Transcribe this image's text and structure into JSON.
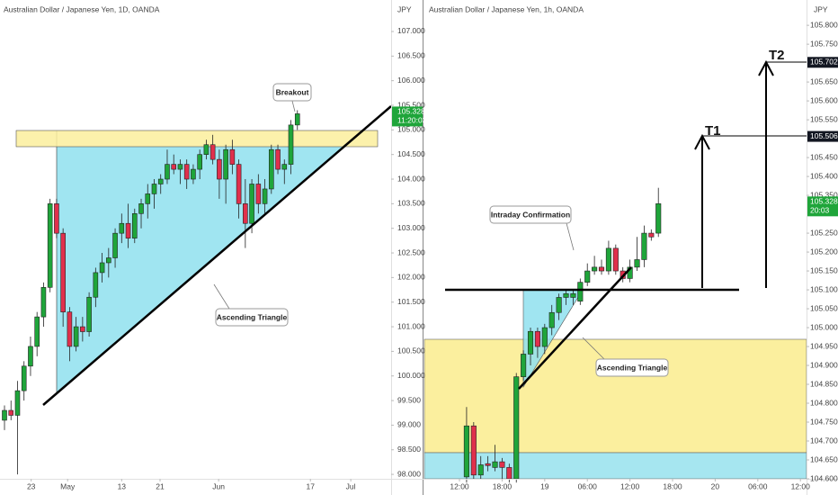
{
  "chart_data": [
    {
      "type": "candlestick",
      "title": "Australian Dollar / Japanese Yen, 1D, OANDA",
      "currency": "JPY",
      "up_color": "#1fa53a",
      "down_color": "#e0304c",
      "x": [
        0,
        1,
        2,
        3,
        4,
        5,
        6,
        7,
        8,
        9,
        10,
        11,
        12,
        13,
        14,
        15,
        16,
        17,
        18,
        19,
        20,
        21,
        22,
        23,
        24,
        25,
        26,
        27,
        28,
        29,
        30,
        31,
        32,
        33,
        34,
        35,
        36,
        37,
        38,
        39,
        40,
        41,
        42,
        43,
        44,
        45
      ],
      "open": [
        99.1,
        99.3,
        99.2,
        99.7,
        100.2,
        100.6,
        101.2,
        101.8,
        103.5,
        102.9,
        101.3,
        100.6,
        101.0,
        100.9,
        101.6,
        102.1,
        102.3,
        102.4,
        102.9,
        103.1,
        102.8,
        103.3,
        103.5,
        103.7,
        103.9,
        104.0,
        104.3,
        104.2,
        104.3,
        104.0,
        104.2,
        104.5,
        104.7,
        104.4,
        104.0,
        104.6,
        104.3,
        103.5,
        103.1,
        103.9,
        103.5,
        103.8,
        104.6,
        104.2,
        104.3,
        105.1
      ],
      "high": [
        99.4,
        99.5,
        99.9,
        100.3,
        100.8,
        101.3,
        101.9,
        103.6,
        103.6,
        103.0,
        101.4,
        101.2,
        101.2,
        101.7,
        102.2,
        102.5,
        102.6,
        103.0,
        103.3,
        103.5,
        103.4,
        103.6,
        103.9,
        104.0,
        104.1,
        104.6,
        104.5,
        104.4,
        104.4,
        104.3,
        104.6,
        104.8,
        104.9,
        104.6,
        104.7,
        104.8,
        104.4,
        104.0,
        104.0,
        104.1,
        104.0,
        104.7,
        104.7,
        104.4,
        105.2,
        105.4
      ],
      "low": [
        98.9,
        99.1,
        98.0,
        99.5,
        100.0,
        100.4,
        101.0,
        101.7,
        102.8,
        101.0,
        100.3,
        100.5,
        100.7,
        100.8,
        101.4,
        101.9,
        102.0,
        102.2,
        102.7,
        102.6,
        102.7,
        103.0,
        103.2,
        103.4,
        103.7,
        103.9,
        104.1,
        103.9,
        103.8,
        103.9,
        104.0,
        104.4,
        104.3,
        103.6,
        103.5,
        104.1,
        103.2,
        102.6,
        102.9,
        103.3,
        103.3,
        103.7,
        104.1,
        103.9,
        104.1,
        105.0
      ],
      "close": [
        99.3,
        99.2,
        99.7,
        100.2,
        100.6,
        101.2,
        101.8,
        103.5,
        102.9,
        101.3,
        100.6,
        101.0,
        100.9,
        101.6,
        102.1,
        102.3,
        102.4,
        102.9,
        103.1,
        102.8,
        103.3,
        103.5,
        103.7,
        103.9,
        104.0,
        104.3,
        104.2,
        104.3,
        104.0,
        104.2,
        104.5,
        104.7,
        104.4,
        104.0,
        104.6,
        104.3,
        103.5,
        103.1,
        103.9,
        103.5,
        103.8,
        104.6,
        104.2,
        104.3,
        105.1,
        105.328
      ],
      "xlim": [
        -0.69,
        59.4
      ],
      "xticks": [
        {
          "value": 4.1,
          "label": "23"
        },
        {
          "value": 9.7,
          "label": "May"
        },
        {
          "value": 18,
          "label": "13"
        },
        {
          "value": 23.9,
          "label": "21"
        },
        {
          "value": 32.9,
          "label": "Jun"
        },
        {
          "value": 47,
          "label": "17"
        },
        {
          "value": 53.2,
          "label": "Jul"
        }
      ],
      "ylim": [
        97.91,
        107.64
      ],
      "yticks": [
        {
          "value": 98,
          "label": "98.000"
        },
        {
          "value": 98.5,
          "label": "98.500"
        },
        {
          "value": 99,
          "label": "99.000"
        },
        {
          "value": 99.5,
          "label": "99.500"
        },
        {
          "value": 100,
          "label": "100.000"
        },
        {
          "value": 100.5,
          "label": "100.500"
        },
        {
          "value": 101,
          "label": "101.000"
        },
        {
          "value": 101.5,
          "label": "101.500"
        },
        {
          "value": 102,
          "label": "102.000"
        },
        {
          "value": 102.5,
          "label": "102.500"
        },
        {
          "value": 103,
          "label": "103.000"
        },
        {
          "value": 103.5,
          "label": "103.500"
        },
        {
          "value": 104,
          "label": "104.000"
        },
        {
          "value": 104.5,
          "label": "104.500"
        },
        {
          "value": 105,
          "label": "105.000"
        },
        {
          "value": 105.5,
          "label": "105.500"
        },
        {
          "value": 106,
          "label": "106.000"
        },
        {
          "value": 106.5,
          "label": "106.500"
        },
        {
          "value": 107,
          "label": "107.000"
        }
      ],
      "last_price": 105.328,
      "countdown": "11:20:03",
      "annotations": [
        "Breakout",
        "Ascending Triangle"
      ]
    },
    {
      "type": "candlestick",
      "title": "Australian Dollar / Japanese Yen, 1h, OANDA",
      "currency": "JPY",
      "up_color": "#1fa53a",
      "down_color": "#e0304c",
      "x": [
        1,
        2,
        3,
        4,
        5,
        6,
        7,
        8,
        9,
        10,
        11,
        12,
        13,
        14,
        15,
        16,
        17,
        18,
        19,
        20,
        21,
        22,
        23,
        24,
        25,
        26,
        27,
        28
      ],
      "open": [
        104.605,
        104.74,
        104.61,
        104.64,
        104.63,
        104.645,
        104.63,
        104.6,
        104.87,
        104.93,
        104.99,
        104.95,
        105.0,
        105.04,
        105.08,
        105.08,
        105.07,
        105.12,
        105.15,
        105.16,
        105.15,
        105.21,
        105.15,
        105.13,
        105.16,
        105.18,
        105.25,
        105.25
      ],
      "high": [
        104.79,
        104.75,
        104.66,
        104.66,
        104.69,
        104.655,
        104.64,
        104.88,
        104.94,
        105.0,
        105.0,
        105.01,
        105.06,
        105.09,
        105.1,
        105.1,
        105.13,
        105.17,
        105.19,
        105.18,
        105.23,
        105.22,
        105.16,
        105.18,
        105.24,
        105.27,
        105.26,
        105.37
      ],
      "low": [
        104.59,
        104.6,
        104.6,
        104.62,
        104.62,
        104.6,
        104.59,
        104.59,
        104.86,
        104.9,
        104.92,
        104.93,
        104.98,
        105.02,
        105.06,
        105.06,
        105.06,
        105.11,
        105.14,
        105.14,
        105.14,
        105.14,
        105.12,
        105.12,
        105.15,
        105.16,
        105.23,
        105.24
      ],
      "close": [
        104.74,
        104.61,
        104.637,
        104.635,
        104.645,
        104.63,
        104.6,
        104.87,
        104.93,
        104.99,
        104.95,
        105.0,
        105.04,
        105.08,
        105.09,
        105.09,
        105.12,
        105.15,
        105.16,
        105.15,
        105.21,
        105.15,
        105.13,
        105.16,
        105.18,
        105.25,
        105.24,
        105.328
      ],
      "xlim": [
        -4.94,
        48.86
      ],
      "xticks": [
        {
          "value": 0,
          "label": "12:00"
        },
        {
          "value": 6,
          "label": "18:00"
        },
        {
          "value": 12,
          "label": "19"
        },
        {
          "value": 18,
          "label": "06:00"
        },
        {
          "value": 24,
          "label": "12:00"
        },
        {
          "value": 30,
          "label": "18:00"
        },
        {
          "value": 36,
          "label": "20"
        },
        {
          "value": 42,
          "label": "06:00"
        },
        {
          "value": 48,
          "label": "12:00"
        }
      ],
      "ylim": [
        104.6,
        105.867
      ],
      "yticks": [
        {
          "value": 104.6,
          "label": "104.600"
        },
        {
          "value": 104.65,
          "label": "104.650"
        },
        {
          "value": 104.7,
          "label": "104.700"
        },
        {
          "value": 104.75,
          "label": "104.750"
        },
        {
          "value": 104.8,
          "label": "104.800"
        },
        {
          "value": 104.85,
          "label": "104.850"
        },
        {
          "value": 104.9,
          "label": "104.900"
        },
        {
          "value": 104.95,
          "label": "104.950"
        },
        {
          "value": 105,
          "label": "105.000"
        },
        {
          "value": 105.05,
          "label": "105.050"
        },
        {
          "value": 105.1,
          "label": "105.100"
        },
        {
          "value": 105.15,
          "label": "105.150"
        },
        {
          "value": 105.2,
          "label": "105.200"
        },
        {
          "value": 105.25,
          "label": "105.250"
        },
        {
          "value": 105.35,
          "label": "105.350"
        },
        {
          "value": 105.4,
          "label": "105.400"
        },
        {
          "value": 105.45,
          "label": "105.450"
        },
        {
          "value": 105.55,
          "label": "105.550"
        },
        {
          "value": 105.6,
          "label": "105.600"
        },
        {
          "value": 105.65,
          "label": "105.650"
        },
        {
          "value": 105.75,
          "label": "105.750"
        },
        {
          "value": 105.8,
          "label": "105.800"
        }
      ],
      "last_price": 105.328,
      "countdown": "20:03",
      "price_markers": [
        105.702,
        105.506
      ],
      "annotations": [
        "Intraday Confirmation",
        "Ascending Triangle",
        "T1",
        "T2"
      ]
    }
  ]
}
